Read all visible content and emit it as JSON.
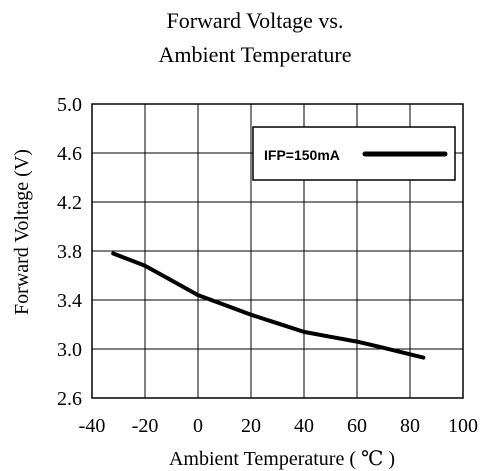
{
  "chart_data": {
    "type": "line",
    "title_lines": [
      "Forward Voltage vs.",
      "Ambient Temperature"
    ],
    "xlabel": "Ambient Temperature ( ℃ )",
    "ylabel": "Forward Voltage (V)",
    "xlim": [
      -40,
      100
    ],
    "ylim": [
      2.6,
      5.0
    ],
    "x_ticks": [
      -40,
      -20,
      0,
      20,
      40,
      60,
      80,
      100
    ],
    "x_tick_labels": [
      "-40",
      "-20",
      "0",
      "20",
      "40",
      "60",
      "80",
      "100"
    ],
    "y_ticks": [
      2.6,
      3.0,
      3.4,
      3.8,
      4.2,
      4.6,
      5.0
    ],
    "y_tick_labels": [
      "2.6",
      "3.0",
      "3.4",
      "3.8",
      "4.2",
      "4.6",
      "5.0"
    ],
    "grid": true,
    "legend_position": "top-right",
    "series": [
      {
        "name": "IFP=150mA",
        "x": [
          -32,
          -20,
          -10,
          0,
          10,
          20,
          30,
          40,
          50,
          60,
          70,
          85
        ],
        "y": [
          3.78,
          3.68,
          3.56,
          3.44,
          3.36,
          3.28,
          3.21,
          3.14,
          3.1,
          3.06,
          3.01,
          2.93
        ]
      }
    ],
    "colors": {
      "line": "#000000",
      "grid": "#000000",
      "background": "#ffffff"
    }
  }
}
